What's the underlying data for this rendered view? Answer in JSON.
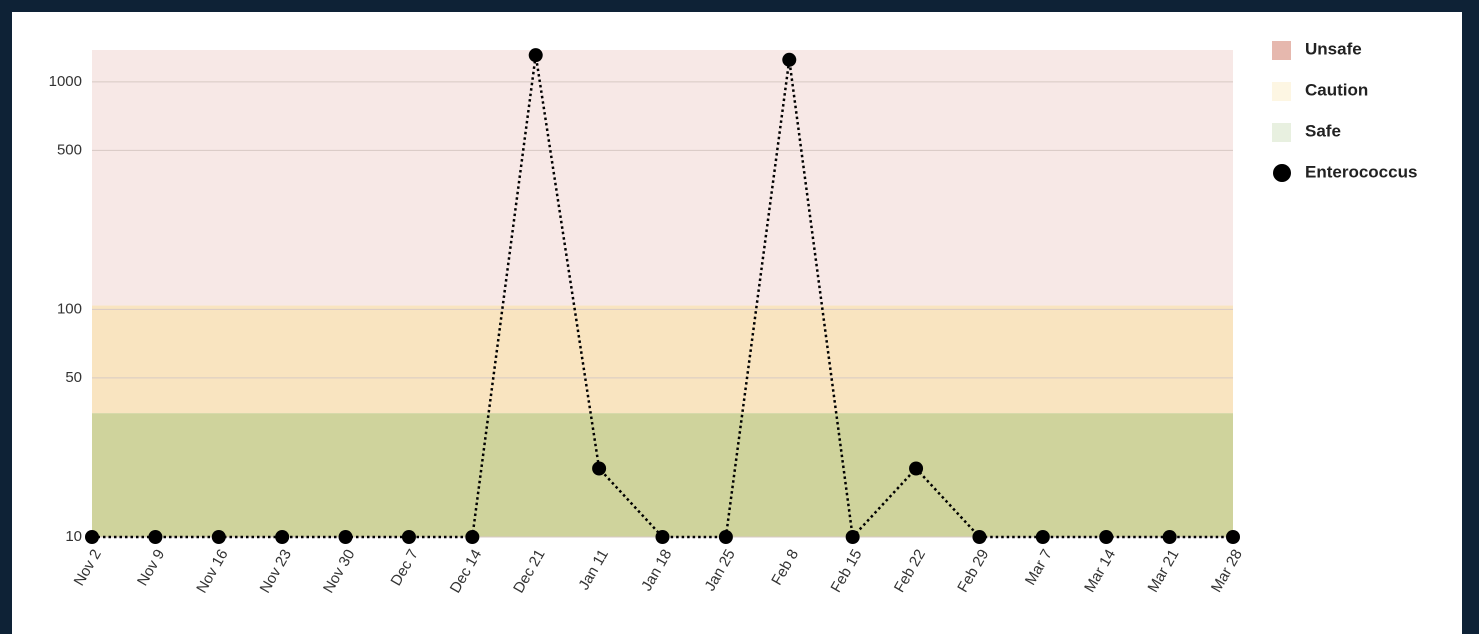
{
  "chart_data": {
    "type": "line",
    "log_scale": true,
    "categories": [
      "Nov 2",
      "Nov 9",
      "Nov 16",
      "Nov 23",
      "Nov 30",
      "Dec 7",
      "Dec 14",
      "Dec 21",
      "Jan 11",
      "Jan 18",
      "Jan 25",
      "Feb 8",
      "Feb 15",
      "Feb 22",
      "Feb 29",
      "Mar 7",
      "Mar 14",
      "Mar 21",
      "Mar 28"
    ],
    "series": [
      {
        "name": "Enterococcus",
        "color": "#000000",
        "line_style": "dotted",
        "values": [
          10,
          10,
          10,
          10,
          10,
          10,
          10,
          1310,
          20,
          10,
          10,
          1250,
          10,
          20,
          10,
          10,
          10,
          10,
          10
        ]
      }
    ],
    "bands": [
      {
        "name": "Unsafe",
        "min": 104,
        "color": "#f7e8e6",
        "legend_color": "#e6b8ae"
      },
      {
        "name": "Caution",
        "min": 35,
        "max": 104,
        "color": "#f9e4c0",
        "legend_color": "#fdf6e3"
      },
      {
        "name": "Safe",
        "max": 35,
        "color": "#cfd39c",
        "legend_color": "#e8f0e0"
      }
    ],
    "ylim": [
      10,
      1380
    ],
    "yticks": [
      10,
      50,
      100,
      500,
      1000
    ],
    "grid": true,
    "legend": "right"
  }
}
